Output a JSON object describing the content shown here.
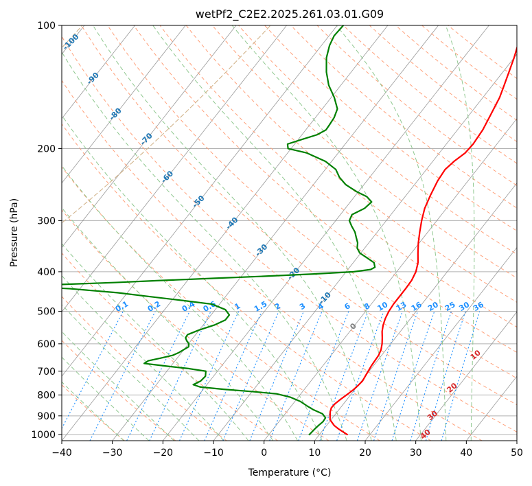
{
  "chart_data": {
    "type": "line",
    "diagram": "skew-t",
    "title": "wetPf2_C2E2.2025.261.03.01.G09",
    "xlabel": "Temperature (°C)",
    "ylabel": "Pressure (hPa)",
    "xlim": [
      -40,
      50
    ],
    "ylim": [
      1035,
      100
    ],
    "x_scale": "linear (skewed isotherms)",
    "y_scale": "log",
    "grid": true,
    "x_ticks": [
      -40,
      -30,
      -20,
      -10,
      0,
      10,
      20,
      30,
      40,
      50
    ],
    "x_tick_labels": [
      "−40",
      "−30",
      "−20",
      "−10",
      "0",
      "10",
      "20",
      "30",
      "40",
      "50"
    ],
    "y_ticks": [
      1000,
      900,
      800,
      700,
      600,
      500,
      400,
      300,
      200,
      100
    ],
    "y_tick_labels": [
      "1000",
      "900",
      "800",
      "700",
      "600",
      "500",
      "400",
      "300",
      "200",
      "100"
    ],
    "series": [
      {
        "color": "#ff0000",
        "points": [
          [
            1000,
            15.5
          ],
          [
            970,
            13.0
          ],
          [
            950,
            11.5
          ],
          [
            920,
            9.8
          ],
          [
            900,
            9.2
          ],
          [
            880,
            8.6
          ],
          [
            860,
            8.2
          ],
          [
            840,
            8.3
          ],
          [
            820,
            8.7
          ],
          [
            800,
            9.2
          ],
          [
            780,
            9.7
          ],
          [
            760,
            10.0
          ],
          [
            740,
            10.2
          ],
          [
            720,
            10.0
          ],
          [
            700,
            9.8
          ],
          [
            680,
            9.6
          ],
          [
            660,
            9.5
          ],
          [
            640,
            9.4
          ],
          [
            620,
            9.0
          ],
          [
            600,
            8.3
          ],
          [
            580,
            7.4
          ],
          [
            560,
            6.4
          ],
          [
            540,
            5.6
          ],
          [
            520,
            5.0
          ],
          [
            500,
            4.6
          ],
          [
            480,
            4.4
          ],
          [
            460,
            4.4
          ],
          [
            440,
            4.4
          ],
          [
            420,
            4.3
          ],
          [
            400,
            3.8
          ],
          [
            380,
            2.8
          ],
          [
            360,
            1.3
          ],
          [
            340,
            -0.2
          ],
          [
            320,
            -1.6
          ],
          [
            300,
            -3.0
          ],
          [
            280,
            -4.3
          ],
          [
            260,
            -5.2
          ],
          [
            240,
            -6.0
          ],
          [
            225,
            -6.3
          ],
          [
            215,
            -5.8
          ],
          [
            205,
            -4.9
          ],
          [
            195,
            -4.7
          ],
          [
            180,
            -5.0
          ],
          [
            165,
            -5.8
          ],
          [
            150,
            -6.7
          ],
          [
            140,
            -7.7
          ],
          [
            130,
            -8.8
          ],
          [
            120,
            -10.0
          ],
          [
            110,
            -11.5
          ],
          [
            100,
            -12.5
          ]
        ]
      },
      {
        "color": "#008000",
        "points": [
          [
            1000,
            8.0
          ],
          [
            970,
            8.2
          ],
          [
            950,
            8.4
          ],
          [
            930,
            8.7
          ],
          [
            910,
            8.6
          ],
          [
            890,
            7.4
          ],
          [
            870,
            5.0
          ],
          [
            850,
            3.0
          ],
          [
            830,
            1.1
          ],
          [
            810,
            -1.6
          ],
          [
            795,
            -4.8
          ],
          [
            785,
            -10
          ],
          [
            775,
            -16
          ],
          [
            765,
            -21
          ],
          [
            755,
            -22.7
          ],
          [
            740,
            -21.8
          ],
          [
            720,
            -21.6
          ],
          [
            700,
            -22.3
          ],
          [
            690,
            -26
          ],
          [
            680,
            -31
          ],
          [
            670,
            -35.7
          ],
          [
            660,
            -35.3
          ],
          [
            650,
            -33.2
          ],
          [
            640,
            -31.3
          ],
          [
            630,
            -30.5
          ],
          [
            620,
            -30.0
          ],
          [
            610,
            -29.5
          ],
          [
            600,
            -29.9
          ],
          [
            590,
            -30.8
          ],
          [
            580,
            -31.5
          ],
          [
            570,
            -31.6
          ],
          [
            555,
            -30.0
          ],
          [
            540,
            -27.8
          ],
          [
            525,
            -26.4
          ],
          [
            510,
            -26.4
          ],
          [
            495,
            -28
          ],
          [
            480,
            -31.5
          ],
          [
            470,
            -38
          ],
          [
            460,
            -45
          ],
          [
            450,
            -52
          ],
          [
            440,
            -62
          ],
          [
            435,
            -70
          ],
          [
            430,
            -65
          ],
          [
            425,
            -54
          ],
          [
            420,
            -45
          ],
          [
            415,
            -35
          ],
          [
            410,
            -25
          ],
          [
            405,
            -16
          ],
          [
            400,
            -8.5
          ],
          [
            395,
            -5.5
          ],
          [
            390,
            -5.0
          ],
          [
            380,
            -5.9
          ],
          [
            370,
            -8.0
          ],
          [
            360,
            -10.2
          ],
          [
            350,
            -11.5
          ],
          [
            340,
            -12.2
          ],
          [
            330,
            -13.3
          ],
          [
            320,
            -14.4
          ],
          [
            310,
            -15.9
          ],
          [
            300,
            -17.3
          ],
          [
            290,
            -17.7
          ],
          [
            280,
            -16.2
          ],
          [
            270,
            -15.8
          ],
          [
            262,
            -17.6
          ],
          [
            255,
            -20.3
          ],
          [
            245,
            -23.6
          ],
          [
            235,
            -26.0
          ],
          [
            225,
            -27.9
          ],
          [
            215,
            -31.2
          ],
          [
            205,
            -36.2
          ],
          [
            200,
            -40.6
          ],
          [
            195,
            -41.4
          ],
          [
            190,
            -39.3
          ],
          [
            185,
            -37.0
          ],
          [
            180,
            -36.0
          ],
          [
            175,
            -36.1
          ],
          [
            168,
            -36.3
          ],
          [
            160,
            -37.0
          ],
          [
            150,
            -39.4
          ],
          [
            140,
            -42.4
          ],
          [
            130,
            -44.9
          ],
          [
            120,
            -47.1
          ],
          [
            112,
            -48.4
          ],
          [
            106,
            -49.0
          ],
          [
            100,
            -48.8
          ]
        ]
      }
    ],
    "dry_adiabat_labels": [],
    "moist_adiabat_labels": [
      {
        "text": "-100",
        "p": 110,
        "t": -100
      },
      {
        "text": "-90",
        "p": 135,
        "t": -90
      },
      {
        "text": "-80",
        "p": 165,
        "t": -80
      },
      {
        "text": "-70",
        "p": 190,
        "t": -70
      },
      {
        "text": "-60",
        "p": 235,
        "t": -60
      },
      {
        "text": "-50",
        "p": 270,
        "t": -50
      },
      {
        "text": "-40",
        "p": 305,
        "t": -40
      },
      {
        "text": "-30",
        "p": 355,
        "t": -30
      },
      {
        "text": "-20",
        "p": 405,
        "t": -20
      },
      {
        "text": "-10",
        "p": 465,
        "t": -10
      },
      {
        "text": "0",
        "p": 545,
        "t": 0
      }
    ],
    "mixing_ratio_labels": [
      "0.1",
      "0.2",
      "0.4",
      "0.6",
      "1",
      "1.5",
      "2",
      "3",
      "4",
      "6",
      "8",
      "10",
      "13",
      "16",
      "20",
      "25",
      "30",
      "36"
    ],
    "theta_e_labels": [
      "10",
      "20",
      "30",
      "40"
    ],
    "colors": {
      "temperature": "#ff0000",
      "dewpoint": "#008000",
      "isotherm": "#808080",
      "dry_adiabat": "#ffa07a",
      "moist_adiabat": "#90c890",
      "mixing_ratio": "#1e90ff",
      "moist_label": "#1f77b4",
      "theta_e_label": "#d62728",
      "zero_label": "#7f7f7f",
      "tan_curve": "#d2b48c"
    }
  }
}
